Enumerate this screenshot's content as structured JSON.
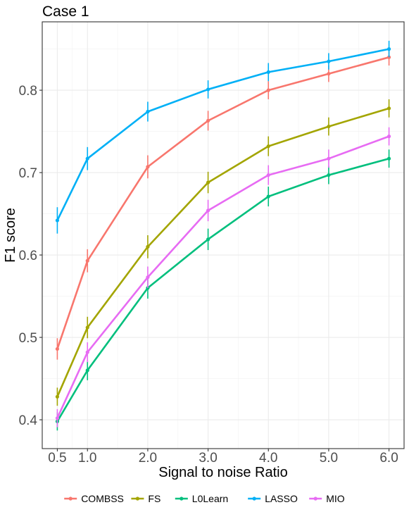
{
  "chart_data": {
    "type": "line",
    "title": "Case 1",
    "xlabel": "Signal to noise Ratio",
    "ylabel": "F1 score",
    "x": [
      0.5,
      1.0,
      2.0,
      3.0,
      4.0,
      5.0,
      6.0
    ],
    "x_tick_labels": [
      "0.5",
      "1.0",
      "2.0",
      "3.0",
      "4.0",
      "5.0",
      "6.0"
    ],
    "y_ticks": [
      0.4,
      0.5,
      0.6,
      0.7,
      0.8
    ],
    "y_tick_labels": [
      "0.4",
      "0.5",
      "0.6",
      "0.7",
      "0.8"
    ],
    "xlim": [
      0.25,
      6.25
    ],
    "ylim": [
      0.365,
      0.883
    ],
    "grid": true,
    "legend_position": "bottom",
    "series": [
      {
        "name": "COMBSS",
        "color": "#F8766D",
        "values": [
          0.486,
          0.593,
          0.707,
          0.763,
          0.8,
          0.82,
          0.84
        ],
        "err": [
          0.013,
          0.014,
          0.014,
          0.012,
          0.011,
          0.01,
          0.01
        ]
      },
      {
        "name": "FS",
        "color": "#A3A500",
        "values": [
          0.428,
          0.512,
          0.61,
          0.688,
          0.732,
          0.756,
          0.778
        ],
        "err": [
          0.011,
          0.013,
          0.014,
          0.013,
          0.012,
          0.011,
          0.011
        ]
      },
      {
        "name": "L0Learn",
        "color": "#00BF7D",
        "values": [
          0.398,
          0.46,
          0.56,
          0.619,
          0.671,
          0.697,
          0.717
        ],
        "err": [
          0.011,
          0.012,
          0.013,
          0.013,
          0.012,
          0.011,
          0.011
        ]
      },
      {
        "name": "LASSO",
        "color": "#00B0F6",
        "values": [
          0.642,
          0.717,
          0.774,
          0.801,
          0.822,
          0.835,
          0.85
        ],
        "err": [
          0.016,
          0.014,
          0.012,
          0.011,
          0.011,
          0.01,
          0.01
        ]
      },
      {
        "name": "MIO",
        "color": "#E76BF3",
        "values": [
          0.402,
          0.482,
          0.573,
          0.654,
          0.697,
          0.717,
          0.744
        ],
        "err": [
          0.011,
          0.012,
          0.013,
          0.013,
          0.012,
          0.011,
          0.011
        ]
      }
    ]
  }
}
